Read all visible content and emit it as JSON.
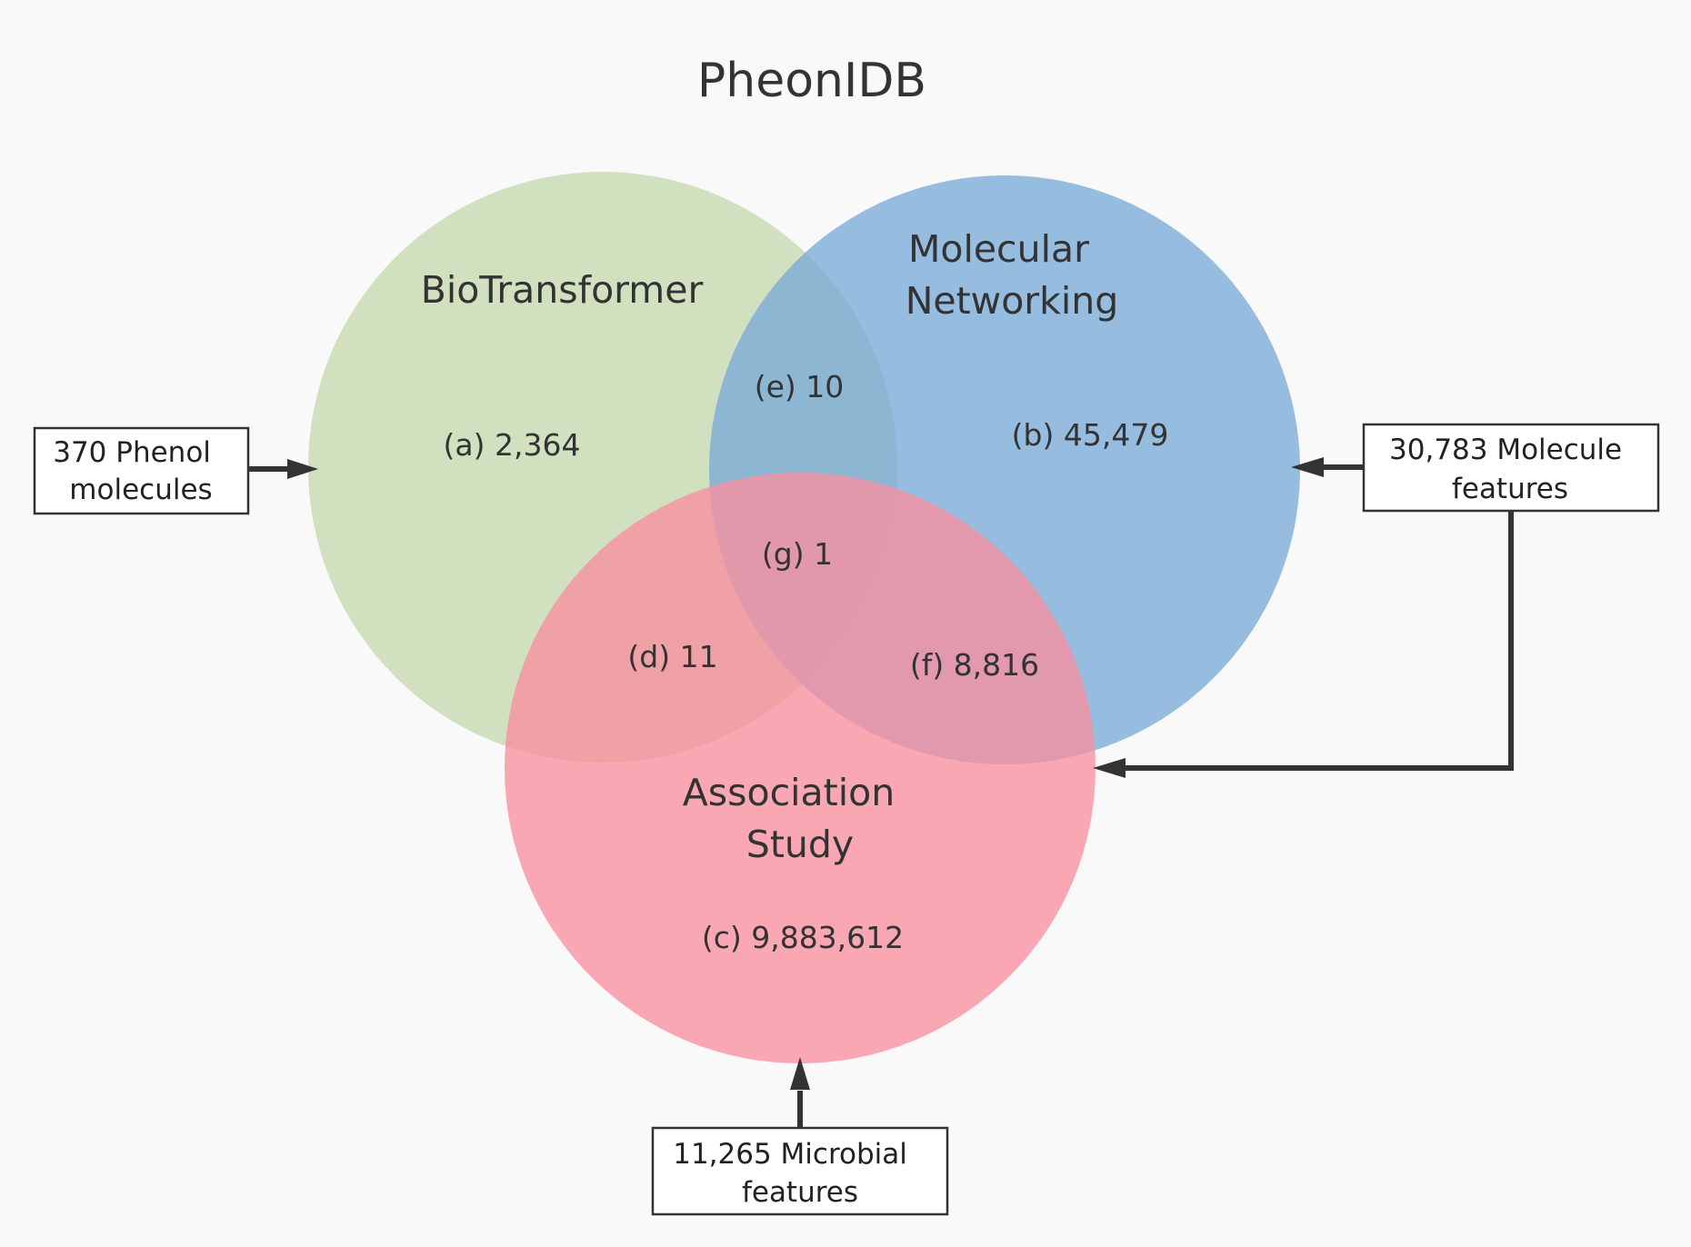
{
  "title": "PheonIDB",
  "sets": {
    "biotransformer": {
      "label": "BioTransformer",
      "color": "#c5d8ae"
    },
    "molecular_networking": {
      "label_lines": [
        "Molecular",
        "Networking"
      ],
      "color": "#7aaad8"
    },
    "association_study": {
      "label_lines": [
        "Association",
        "Study"
      ],
      "color": "#f7909f"
    }
  },
  "regions": {
    "a": "(a) 2,364",
    "b": "(b) 45,479",
    "c": "(c) 9,883,612",
    "d": "(d) 11",
    "e": "(e) 10",
    "f": "(f) 8,816",
    "g": "(g) 1"
  },
  "inputs": {
    "phenol": {
      "lines": [
        "370 Phenol",
        "molecules"
      ]
    },
    "molecule_features": {
      "lines": [
        "30,783 Molecule",
        "features"
      ]
    },
    "microbial_features": {
      "lines": [
        "11,265 Microbial",
        "features"
      ]
    }
  },
  "colors": {
    "background": "#f9f9f9",
    "text": "#333333",
    "connector": "#333333"
  }
}
